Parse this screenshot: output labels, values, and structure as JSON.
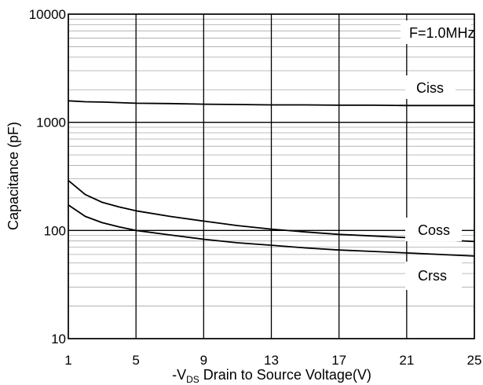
{
  "chart_data": {
    "type": "line",
    "title": "",
    "annotation": "F=1.0MHz",
    "xlabel": {
      "prefix": "-V",
      "sub": "DS",
      "rest": " Drain to Source Voltage(V)"
    },
    "ylabel": "Capacitance (pF)",
    "y_scale": "log",
    "xlim": [
      1,
      25
    ],
    "ylim": [
      10,
      10000
    ],
    "x_ticks": [
      1,
      5,
      9,
      13,
      17,
      21,
      25
    ],
    "y_ticks": [
      10,
      100,
      1000,
      10000
    ],
    "grid": true,
    "line_color": "#000000",
    "series": [
      {
        "name": "Ciss",
        "x": [
          1,
          2,
          3,
          4,
          5,
          7,
          9,
          11,
          13,
          15,
          17,
          19,
          21,
          23,
          25
        ],
        "values": [
          1580,
          1550,
          1540,
          1520,
          1500,
          1490,
          1470,
          1460,
          1450,
          1450,
          1440,
          1440,
          1430,
          1430,
          1430
        ]
      },
      {
        "name": "Coss",
        "x": [
          1,
          2,
          3,
          4,
          5,
          7,
          9,
          11,
          13,
          15,
          17,
          19,
          21,
          23,
          25
        ],
        "values": [
          290,
          215,
          182,
          165,
          152,
          135,
          122,
          111,
          103,
          97,
          92,
          89,
          86,
          82,
          79
        ]
      },
      {
        "name": "Crss",
        "x": [
          1,
          2,
          3,
          4,
          5,
          7,
          9,
          11,
          13,
          15,
          17,
          19,
          21,
          23,
          25
        ],
        "values": [
          172,
          135,
          118,
          108,
          100,
          91,
          83,
          77,
          73,
          69,
          66,
          64,
          62,
          60,
          58
        ]
      }
    ]
  }
}
